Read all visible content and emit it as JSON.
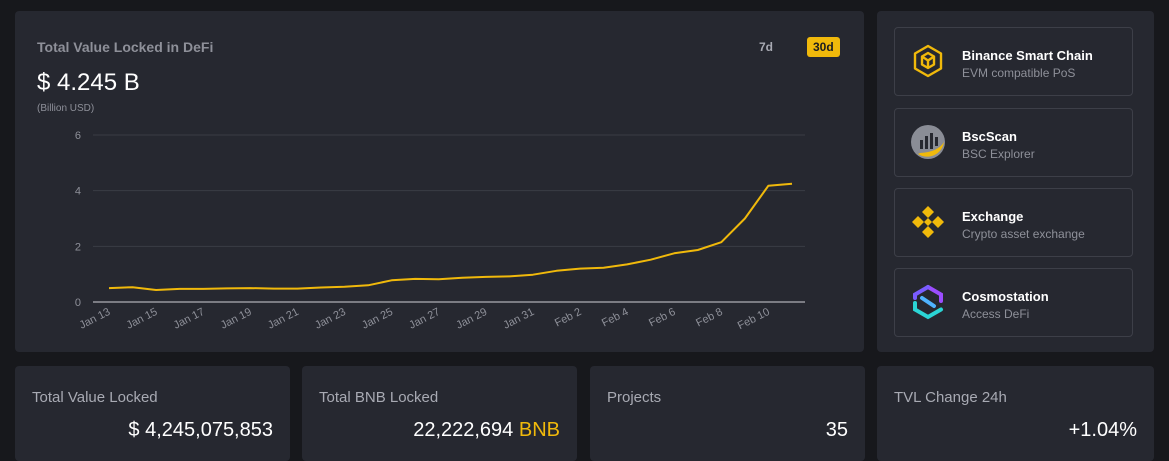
{
  "chart_card": {
    "title": "Total Value Locked in DeFi",
    "value": "$ 4.245 B",
    "unit": "(Billion USD)",
    "ranges": [
      "7d",
      "30d"
    ],
    "active_range": "30d"
  },
  "chart_data": {
    "type": "line",
    "x": [
      "Jan 13",
      "Jan 14",
      "Jan 15",
      "Jan 16",
      "Jan 17",
      "Jan 18",
      "Jan 19",
      "Jan 20",
      "Jan 21",
      "Jan 22",
      "Jan 23",
      "Jan 24",
      "Jan 25",
      "Jan 26",
      "Jan 27",
      "Jan 28",
      "Jan 29",
      "Jan 30",
      "Jan 31",
      "Feb 1",
      "Feb 2",
      "Feb 3",
      "Feb 4",
      "Feb 5",
      "Feb 6",
      "Feb 7",
      "Feb 8",
      "Feb 9",
      "Feb 10",
      "Feb 11"
    ],
    "x_tick_labels": [
      "Jan 13",
      "Jan 15",
      "Jan 17",
      "Jan 19",
      "Jan 21",
      "Jan 23",
      "Jan 25",
      "Jan 27",
      "Jan 29",
      "Jan 31",
      "Feb 2",
      "Feb 4",
      "Feb 6",
      "Feb 8",
      "Feb 10"
    ],
    "series": [
      {
        "values": [
          0.5,
          0.53,
          0.43,
          0.47,
          0.47,
          0.49,
          0.5,
          0.48,
          0.48,
          0.52,
          0.55,
          0.6,
          0.78,
          0.83,
          0.82,
          0.87,
          0.9,
          0.92,
          0.98,
          1.12,
          1.2,
          1.23,
          1.35,
          1.52,
          1.75,
          1.87,
          2.15,
          3.0,
          4.18,
          4.245
        ],
        "color": "#f0b90b"
      }
    ],
    "ylim": [
      0,
      6
    ],
    "y_ticks": [
      0,
      2,
      4,
      6
    ],
    "grid": true
  },
  "links": [
    {
      "title": "Binance Smart Chain",
      "subtitle": "EVM compatible PoS",
      "icon": "bsc-cube-icon"
    },
    {
      "title": "BscScan",
      "subtitle": "BSC Explorer",
      "icon": "bscscan-icon"
    },
    {
      "title": "Exchange",
      "subtitle": "Crypto asset exchange",
      "icon": "binance-diamond-icon"
    },
    {
      "title": "Cosmostation",
      "subtitle": "Access DeFi",
      "icon": "cosmostation-hexagon-icon"
    }
  ],
  "stats": [
    {
      "label": "Total Value Locked",
      "value": "$ 4,245,075,853",
      "suffix": ""
    },
    {
      "label": "Total BNB Locked",
      "value": "22,222,694",
      "suffix": "BNB"
    },
    {
      "label": "Projects",
      "value": "35",
      "suffix": ""
    },
    {
      "label": "TVL Change 24h",
      "value": "+1.04%",
      "suffix": ""
    }
  ],
  "colors": {
    "accent": "#f0b90b",
    "card_bg": "#262830",
    "page_bg": "#17181c",
    "muted_text": "#8e9099",
    "grid": "#3a3c45",
    "cosmostation_cyan": "#2bd5d5",
    "cosmostation_purple": "#9b4dff"
  }
}
